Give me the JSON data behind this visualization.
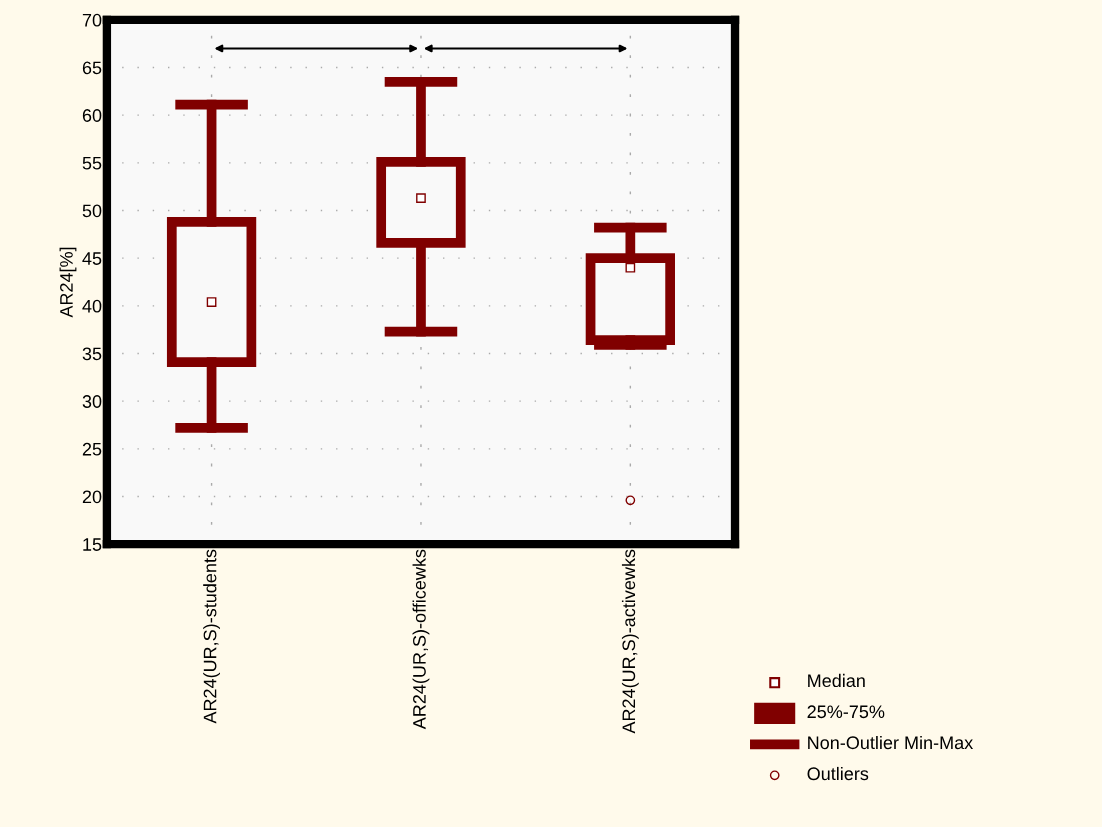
{
  "chart_data": {
    "type": "box",
    "ylabel": "AR24[%]",
    "categories": [
      "AR24(UR,S)-students",
      "AR24(UR,S)-officewks",
      "AR24(UR,S)-activewks"
    ],
    "boxes": [
      {
        "low": 27.2,
        "q1": 34.1,
        "median": 40.4,
        "q3": 48.8,
        "high": 61.1
      },
      {
        "low": 37.3,
        "q1": 46.6,
        "median": 51.3,
        "q3": 55.1,
        "high": 63.5
      },
      {
        "low": 35.9,
        "q1": 36.4,
        "median": 44.0,
        "q3": 45.0,
        "high": 48.2,
        "outliers": [
          19.6
        ]
      }
    ],
    "color": "#800000",
    "ylim": [
      15,
      70
    ],
    "yticks": [
      15,
      20,
      25,
      30,
      35,
      40,
      45,
      50,
      55,
      60,
      65,
      70
    ],
    "grid": true,
    "annotations": [
      "Median",
      "25%-75%",
      "Non-Outlier Min-Max",
      "Outliers"
    ]
  }
}
